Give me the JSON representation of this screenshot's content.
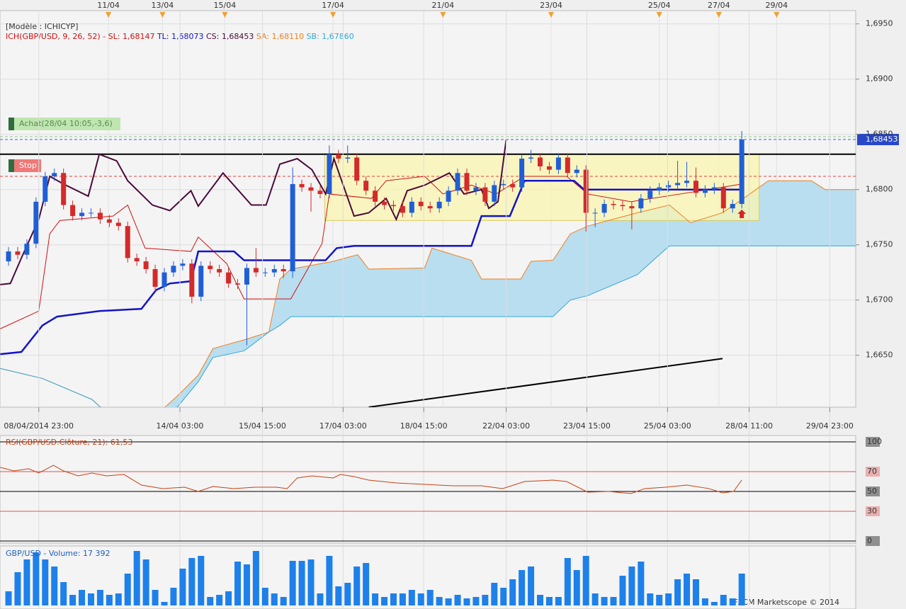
{
  "chart_data": [
    {
      "type": "candlestick",
      "model": "[Modèle : ICHICYP]",
      "indicator": "ICH(GBP/USD, 9, 26, 52) -",
      "open": [
        1.6735,
        1.6744,
        1.6741,
        1.6751,
        1.6789,
        1.6812,
        1.6815,
        1.6786,
        1.6776,
        1.6779,
        1.6779,
        1.6773,
        1.677,
        1.6767,
        1.6738,
        1.6735,
        1.6728,
        1.6712,
        1.6725,
        1.6731,
        1.6733,
        1.6703,
        1.6731,
        1.6728,
        1.6725,
        1.6715,
        1.6714,
        1.6729,
        1.6725,
        1.6725,
        1.6728,
        1.6726,
        1.6805,
        1.6802,
        1.6799,
        1.6796,
        1.6832,
        1.6828,
        1.6829,
        1.6808,
        1.6799,
        1.6789,
        1.6786,
        1.6785,
        1.6779,
        1.6789,
        1.6785,
        1.6783,
        1.6789,
        1.6799,
        1.6815,
        1.6799,
        1.6802,
        1.6789,
        1.6804,
        1.6805,
        1.6802,
        1.6828,
        1.6829,
        1.6821,
        1.6818,
        1.6829,
        1.6815,
        1.6818,
        1.6779,
        1.6779,
        1.6787,
        1.6786,
        1.6785,
        1.6783,
        1.6792,
        1.6799,
        1.6802,
        1.6804,
        1.6806,
        1.6808,
        1.6797,
        1.68,
        1.6802,
        1.6783,
        1.6787
      ],
      "high": [
        1.6748,
        1.6748,
        1.6755,
        1.6793,
        1.6816,
        1.6819,
        1.6819,
        1.679,
        1.6783,
        1.6783,
        1.6783,
        1.6777,
        1.6774,
        1.6771,
        1.6742,
        1.6739,
        1.6732,
        1.6729,
        1.6735,
        1.6737,
        1.6737,
        1.6735,
        1.6735,
        1.6732,
        1.6729,
        1.6719,
        1.6733,
        1.6747,
        1.6729,
        1.6732,
        1.6732,
        1.682,
        1.6809,
        1.6806,
        1.6803,
        1.684,
        1.6836,
        1.684,
        1.6833,
        1.6812,
        1.6803,
        1.6793,
        1.679,
        1.6789,
        1.6793,
        1.6793,
        1.6789,
        1.6793,
        1.6803,
        1.6819,
        1.6819,
        1.6806,
        1.6806,
        1.6808,
        1.6809,
        1.6809,
        1.6832,
        1.6836,
        1.6833,
        1.6825,
        1.6833,
        1.6833,
        1.6822,
        1.6822,
        1.6783,
        1.6791,
        1.679,
        1.679,
        1.6789,
        1.6796,
        1.6803,
        1.6806,
        1.6808,
        1.6826,
        1.6825,
        1.682,
        1.6804,
        1.6806,
        1.6806,
        1.6791,
        1.6853
      ],
      "low": [
        1.6731,
        1.6737,
        1.6737,
        1.6747,
        1.6785,
        1.6808,
        1.6782,
        1.6772,
        1.6772,
        1.6775,
        1.6769,
        1.6766,
        1.6763,
        1.6734,
        1.6731,
        1.6724,
        1.6708,
        1.6708,
        1.6721,
        1.6727,
        1.6697,
        1.6699,
        1.6724,
        1.6721,
        1.6711,
        1.671,
        1.6659,
        1.6721,
        1.6721,
        1.6721,
        1.672,
        1.672,
        1.6798,
        1.678,
        1.6792,
        1.6792,
        1.6824,
        1.6824,
        1.6804,
        1.6795,
        1.6785,
        1.6782,
        1.6781,
        1.6775,
        1.6775,
        1.6781,
        1.6779,
        1.6779,
        1.6785,
        1.6795,
        1.6795,
        1.6795,
        1.6785,
        1.6785,
        1.68,
        1.6798,
        1.6798,
        1.6824,
        1.6817,
        1.6814,
        1.6814,
        1.6811,
        1.6811,
        1.6762,
        1.6766,
        1.6775,
        1.6782,
        1.6781,
        1.6764,
        1.6779,
        1.6788,
        1.6795,
        1.6798,
        1.68,
        1.6802,
        1.6793,
        1.6793,
        1.6796,
        1.6779,
        1.6779,
        1.6783
      ],
      "close": [
        1.6744,
        1.6741,
        1.6751,
        1.6789,
        1.6812,
        1.6815,
        1.6786,
        1.6776,
        1.6779,
        1.6779,
        1.6773,
        1.677,
        1.6767,
        1.6738,
        1.6735,
        1.6728,
        1.6712,
        1.6725,
        1.6731,
        1.6733,
        1.6703,
        1.6731,
        1.6728,
        1.6725,
        1.6715,
        1.6714,
        1.6729,
        1.6725,
        1.6725,
        1.6728,
        1.6726,
        1.6805,
        1.6802,
        1.6799,
        1.6796,
        1.6832,
        1.6828,
        1.6829,
        1.6808,
        1.6799,
        1.6789,
        1.6786,
        1.6785,
        1.6779,
        1.6789,
        1.6785,
        1.6783,
        1.6789,
        1.6799,
        1.6815,
        1.6799,
        1.6802,
        1.6789,
        1.6804,
        1.6805,
        1.6802,
        1.6828,
        1.6829,
        1.6821,
        1.6818,
        1.6829,
        1.6815,
        1.6818,
        1.6779,
        1.6779,
        1.6787,
        1.6786,
        1.6785,
        1.6783,
        1.6792,
        1.6799,
        1.6802,
        1.6804,
        1.6806,
        1.6808,
        1.6797,
        1.68,
        1.6802,
        1.6783,
        1.6787,
        1.68453
      ],
      "up_color": "#1f5fd6",
      "down_color": "#d42a2a",
      "series": [
        {
          "name": "SL: 1,68147",
          "color": "#d01010",
          "x": [
            -0.9,
            3.3,
            4.5,
            5.6,
            11.4,
            13.0,
            14.9,
            19.9,
            20.7,
            23.8,
            25.7,
            30.8,
            34.2,
            35.0,
            39.6,
            41.2,
            45.4,
            47.4,
            50.5,
            53.2,
            56.3,
            60.9,
            63.2,
            67.9,
            73.3,
            80
          ],
          "values": [
            1.6674,
            1.669,
            1.676,
            1.6772,
            1.6776,
            1.6786,
            1.6747,
            1.6744,
            1.6757,
            1.6733,
            1.6701,
            1.6701,
            1.6751,
            1.6796,
            1.6792,
            1.6808,
            1.6812,
            1.6796,
            1.6804,
            1.6796,
            1.6812,
            1.6812,
            1.6796,
            1.6789,
            1.6796,
            1.6805
          ]
        },
        {
          "name": "TL: 1,68073",
          "color": "#1414c8",
          "x": [
            -0.9,
            1.4,
            3.7,
            5.3,
            9.9,
            14.5,
            16.1,
            17.6,
            19.9,
            20.7,
            24.6,
            25.7,
            34.6,
            35.8,
            37.7,
            50.5,
            51.6,
            54.7,
            56.3,
            61.7,
            62.8,
            80
          ],
          "values": [
            1.6651,
            1.6653,
            1.6677,
            1.6685,
            1.669,
            1.6692,
            1.6709,
            1.6715,
            1.6717,
            1.6744,
            1.6744,
            1.6736,
            1.6736,
            1.6747,
            1.6749,
            1.6749,
            1.6776,
            1.6776,
            1.6808,
            1.6808,
            1.68,
            1.68
          ]
        },
        {
          "name": "CS: 1,68453",
          "color": "#4a0a3a",
          "x": [
            -0.9,
            0.2,
            1.4,
            3.3,
            4.5,
            6.0,
            8.7,
            9.9,
            11.8,
            13.0,
            15.7,
            17.6,
            19.9,
            20.7,
            23.4,
            26.5,
            28.1,
            29.6,
            31.5,
            33.1,
            34.6,
            35.5,
            37.7,
            39.3,
            41.2,
            42.3,
            43.5,
            45.4,
            48.1,
            49.7,
            51.6,
            52.4,
            53.4,
            54.3
          ],
          "values": [
            1.6714,
            1.6715,
            1.6738,
            1.6773,
            1.6812,
            1.6805,
            1.6794,
            1.6832,
            1.6826,
            1.6808,
            1.6786,
            1.6781,
            1.6799,
            1.6785,
            1.6815,
            1.6786,
            1.6786,
            1.6823,
            1.6828,
            1.6818,
            1.6796,
            1.6828,
            1.6776,
            1.6779,
            1.6792,
            1.6773,
            1.6799,
            1.6804,
            1.6815,
            1.6796,
            1.68,
            1.6783,
            1.6789,
            1.68453
          ]
        },
        {
          "name": "SA: 1,68110",
          "color": "#f08020",
          "x": [
            -0.9,
            3.7,
            9.1,
            10.3,
            16.8,
            18.4,
            20.7,
            22.3,
            25.7,
            28.4,
            29.6,
            30.8,
            35.4,
            38.1,
            39.3,
            45.4,
            46.2,
            50.5,
            51.6,
            55.9,
            57.0,
            59.4,
            61.3,
            63.2,
            68.6,
            72.1,
            74.4,
            77.9,
            80.2,
            82.9,
            87.6,
            89.1,
            92.4
          ],
          "values": [
            1.6638,
            1.6629,
            1.661,
            1.6601,
            1.6601,
            1.6613,
            1.6632,
            1.6656,
            1.6664,
            1.6671,
            1.6719,
            1.6728,
            1.6735,
            1.6741,
            1.6728,
            1.6729,
            1.6747,
            1.6736,
            1.6719,
            1.6719,
            1.6735,
            1.6736,
            1.676,
            1.6767,
            1.6779,
            1.6786,
            1.677,
            1.6779,
            1.6792,
            1.6808,
            1.6808,
            1.68,
            1.68
          ]
        },
        {
          "name": "SB: 1,67860",
          "color": "#30a8d8",
          "x": [
            -0.9,
            3.7,
            9.1,
            10.3,
            16.8,
            18.4,
            20.7,
            22.3,
            25.7,
            28.4,
            29.6,
            30.8,
            35.4,
            38.1,
            39.3,
            45.4,
            46.2,
            50.5,
            51.6,
            55.9,
            57.0,
            59.4,
            61.3,
            63.2,
            68.6,
            72.1,
            74.4,
            77.9,
            80.2,
            82.9,
            87.6,
            89.1,
            92.4
          ],
          "values": [
            1.6638,
            1.6629,
            1.661,
            1.6601,
            1.6601,
            1.6603,
            1.6626,
            1.6648,
            1.6654,
            1.6671,
            1.6677,
            1.6685,
            1.6685,
            1.6685,
            1.6685,
            1.6685,
            1.6685,
            1.6685,
            1.6685,
            1.6685,
            1.6685,
            1.6685,
            1.67,
            1.6704,
            1.6723,
            1.6749,
            1.6749,
            1.6749,
            1.6749,
            1.6749,
            1.6749,
            1.6749,
            1.6749
          ]
        }
      ],
      "cloud_color": "#b9def0",
      "xlim": [
        -0.93,
        92.43
      ],
      "ylim": [
        1.6603,
        1.6962
      ],
      "yticks": [
        {
          "value": 1.665,
          "label": "1,6650"
        },
        {
          "value": 1.67,
          "label": "1,6700"
        },
        {
          "value": 1.675,
          "label": "1,6750"
        },
        {
          "value": 1.68,
          "label": "1,6800"
        },
        {
          "value": 1.685,
          "label": "1,6850"
        },
        {
          "value": 1.69,
          "label": "1,6900"
        },
        {
          "value": 1.695,
          "label": "1,6950"
        }
      ],
      "xticks": [
        {
          "value": 3.3,
          "label": "08/04/2014 23:00"
        },
        {
          "value": 18.7,
          "label": "14/04 03:00"
        },
        {
          "value": 27.7,
          "label": "15/04 15:00"
        },
        {
          "value": 36.5,
          "label": "17/04 03:00"
        },
        {
          "value": 45.3,
          "label": "18/04 15:00"
        },
        {
          "value": 54.3,
          "label": "22/04 03:00"
        },
        {
          "value": 63.1,
          "label": "23/04 15:00"
        },
        {
          "value": 71.9,
          "label": "25/04 03:00"
        },
        {
          "value": 80.8,
          "label": "28/04 11:00"
        },
        {
          "value": 89.6,
          "label": "29/04 23:00"
        }
      ],
      "x2ticks": [
        {
          "value": 10.9,
          "label": "11/04"
        },
        {
          "value": 16.8,
          "label": "13/04"
        },
        {
          "value": 23.6,
          "label": "15/04"
        },
        {
          "value": 35.4,
          "label": "17/04"
        },
        {
          "value": 47.4,
          "label": "21/04"
        },
        {
          "value": 59.2,
          "label": "23/04"
        },
        {
          "value": 71.0,
          "label": "25/04"
        },
        {
          "value": 77.5,
          "label": "27/04"
        },
        {
          "value": 83.8,
          "label": "29/04"
        }
      ],
      "grid": true,
      "levels": [
        {
          "value": 1.6832,
          "color": "#000000"
        },
        {
          "value": 1.6812,
          "color": "#e04040",
          "dashed": true
        },
        {
          "value": 1.6848,
          "color": "#90c890",
          "dashed": true
        },
        {
          "value": 1.68453,
          "color": "#4060e0",
          "dashed": true
        }
      ],
      "tags": [
        "Achat(28/04 10:05,-3,6)",
        "Stop"
      ],
      "last_price": {
        "value": 1.68453,
        "label": "1,68453"
      },
      "zone": {
        "x": [
          34.5,
          81.9
        ],
        "y": [
          1.6772,
          1.6832
        ]
      },
      "trendline": {
        "x": [
          39.3,
          77.9
        ],
        "y": [
          1.6603,
          1.6647
        ]
      }
    },
    {
      "type": "line",
      "title": "RSI(GBP/USD.Clôture, 21): 61,53",
      "x": [
        -0.9,
        0.6,
        2.2,
        3.3,
        4.9,
        6.0,
        7.6,
        9.1,
        10.7,
        12.6,
        14.5,
        16.8,
        19.2,
        20.7,
        22.3,
        24.6,
        26.9,
        29.2,
        30.4,
        31.5,
        33.1,
        35.4,
        36.2,
        37.7,
        39.3,
        42.3,
        45.4,
        48.5,
        51.6,
        53.9,
        56.3,
        59.4,
        60.9,
        63.2,
        65.5,
        67.9,
        69.4,
        71.7,
        74.0,
        76.4,
        77.9,
        79.1,
        80
      ],
      "values": [
        74.3,
        70.7,
        72.9,
        68.6,
        76.4,
        70.7,
        65.7,
        68.6,
        65.7,
        67.1,
        56.4,
        52.9,
        54.3,
        50.0,
        55.0,
        52.9,
        54.3,
        54.3,
        52.9,
        63.6,
        65.7,
        63.6,
        67.1,
        65.0,
        61.4,
        58.6,
        57.1,
        55.7,
        55.7,
        52.9,
        60.0,
        61.4,
        60.0,
        49.3,
        50.0,
        47.9,
        52.9,
        54.3,
        56.4,
        52.9,
        48.6,
        50.0,
        61.53
      ],
      "color": "#c84010",
      "xlim": [
        -0.93,
        92.43
      ],
      "ylim": [
        0,
        100
      ],
      "yticks": [
        0,
        30,
        50,
        70,
        100
      ],
      "tick_colors": [
        "#000000",
        "#e05050",
        "#000000",
        "#e05050",
        "#000000"
      ]
    },
    {
      "type": "bar",
      "title": "GBP/USD - Volume: 17 392",
      "values": [
        7730,
        18170,
        25120,
        28990,
        25120,
        21260,
        12750,
        5800,
        8500,
        6570,
        8500,
        5800,
        6570,
        17390,
        29760,
        25120,
        8500,
        1930,
        9660,
        20100,
        25900,
        27060,
        4640,
        5800,
        7730,
        23960,
        22420,
        29760,
        9660,
        6570,
        4640,
        24350,
        24350,
        25120,
        6570,
        27060,
        10440,
        12370,
        21260,
        23190,
        6570,
        4640,
        6570,
        6570,
        8500,
        6570,
        8500,
        4640,
        3870,
        5800,
        3870,
        4640,
        5800,
        12370,
        9660,
        14300,
        19330,
        21260,
        5800,
        4640,
        4640,
        25900,
        19330,
        27060,
        6570,
        4640,
        4640,
        16230,
        21260,
        23960,
        6570,
        5800,
        6570,
        14300,
        17390,
        14300,
        3870,
        1930,
        5800,
        3870,
        17392
      ],
      "color": "#1e80ea",
      "xlim": [
        -0.93,
        92.43
      ],
      "ylim": [
        0,
        32080
      ]
    }
  ],
  "footer": "FXCM Marketscope © 2014"
}
